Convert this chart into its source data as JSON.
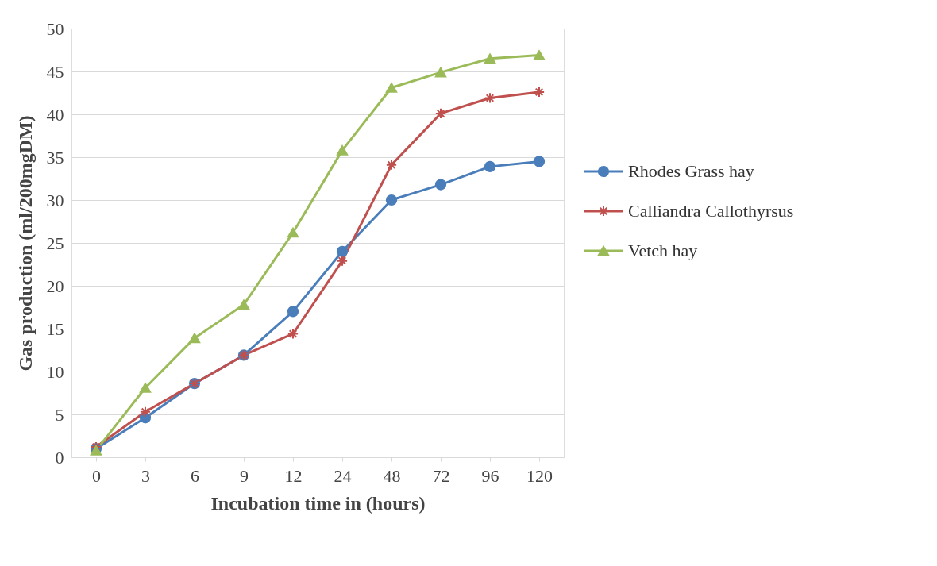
{
  "chart_data": {
    "type": "line",
    "xlabel": "Incubation time in (hours)",
    "ylabel": "Gas production (ml/200mgDM)",
    "categories": [
      "0",
      "3",
      "6",
      "9",
      "12",
      "24",
      "48",
      "72",
      "96",
      "120"
    ],
    "series": [
      {
        "name": "Rhodes Grass hay",
        "color": "#4a7ebb",
        "marker": "circle",
        "values": [
          1.0,
          4.6,
          8.6,
          11.9,
          17.0,
          24.0,
          30.0,
          31.8,
          33.9,
          34.5
        ]
      },
      {
        "name": "Calliandra Callothyrsus",
        "color": "#c0504d",
        "marker": "cross",
        "values": [
          1.2,
          5.3,
          8.6,
          11.9,
          14.4,
          22.9,
          34.1,
          40.1,
          41.9,
          42.6
        ]
      },
      {
        "name": "Vetch hay",
        "color": "#9bbb59",
        "marker": "triangle",
        "values": [
          0.8,
          8.1,
          13.9,
          17.8,
          26.2,
          35.8,
          43.1,
          44.9,
          46.5,
          46.9
        ]
      }
    ],
    "ylim": [
      0,
      50
    ],
    "yticks": [
      0,
      5,
      10,
      15,
      20,
      25,
      30,
      35,
      40,
      45,
      50
    ],
    "grid": "y",
    "legend": "right",
    "line_style": "solid"
  }
}
